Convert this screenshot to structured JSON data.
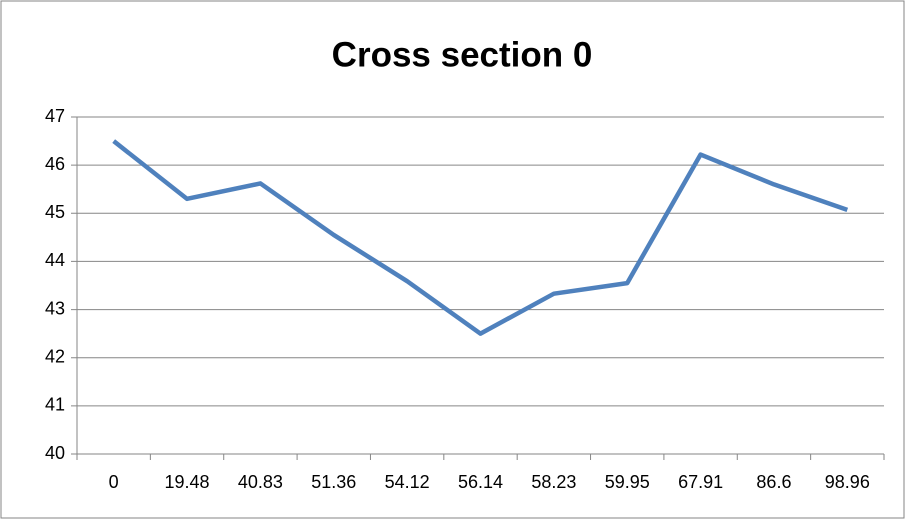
{
  "chart_data": {
    "type": "line",
    "title": "Cross section 0",
    "categories": [
      "0",
      "19.48",
      "40.83",
      "51.36",
      "54.12",
      "56.14",
      "58.23",
      "59.95",
      "67.91",
      "86.6",
      "98.96"
    ],
    "series": [
      {
        "name": "Cross section 0",
        "color": "#4f81bd",
        "values": [
          46.5,
          45.3,
          45.62,
          44.55,
          43.59,
          42.5,
          43.33,
          43.55,
          46.22,
          45.6,
          45.07
        ]
      }
    ],
    "ylim": [
      40,
      47
    ],
    "yticks": [
      40,
      41,
      42,
      43,
      44,
      45,
      46,
      47
    ],
    "grid": true
  }
}
